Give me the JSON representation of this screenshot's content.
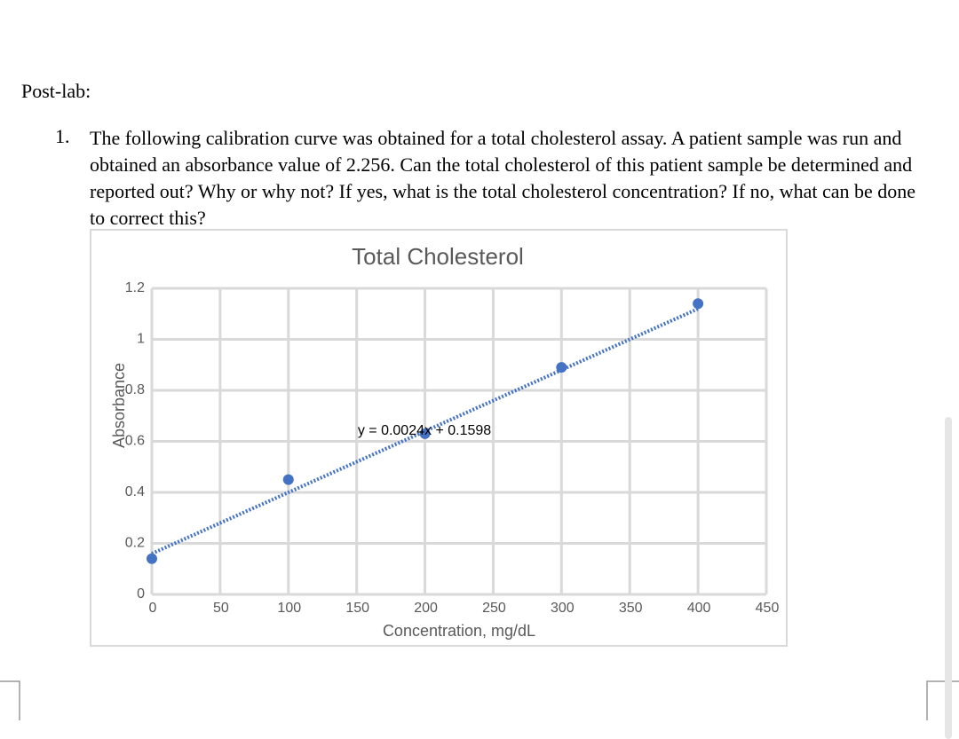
{
  "heading": "Post-lab:",
  "question": {
    "number": "1.",
    "text": "The following calibration curve was obtained for a total cholesterol assay. A patient sample was run and obtained an absorbance value of 2.256. Can the total cholesterol of this patient sample be determined and reported out? Why or why not? If yes, what is the total cholesterol concentration? If no, what can be done to correct this?"
  },
  "chart_data": {
    "type": "scatter",
    "title": "Total Cholesterol",
    "x_label": "Concentration, mg/dL",
    "y_label": "Absorbance",
    "x": [
      0,
      100,
      200,
      300,
      400
    ],
    "values": [
      0.14,
      0.45,
      0.63,
      0.89,
      1.14
    ],
    "color": "#4472c4",
    "trendline": {
      "slope": 0.0024,
      "intercept": 0.1598,
      "label": "y = 0.0024x + 0.1598"
    },
    "xlim": [
      0,
      450
    ],
    "xticks": [
      0,
      50,
      100,
      150,
      200,
      250,
      300,
      350,
      400,
      450
    ],
    "ylim": [
      0,
      1.2
    ],
    "yticks": [
      0,
      0.2,
      0.4,
      0.6,
      0.8,
      1,
      1.2
    ],
    "grid": true
  }
}
